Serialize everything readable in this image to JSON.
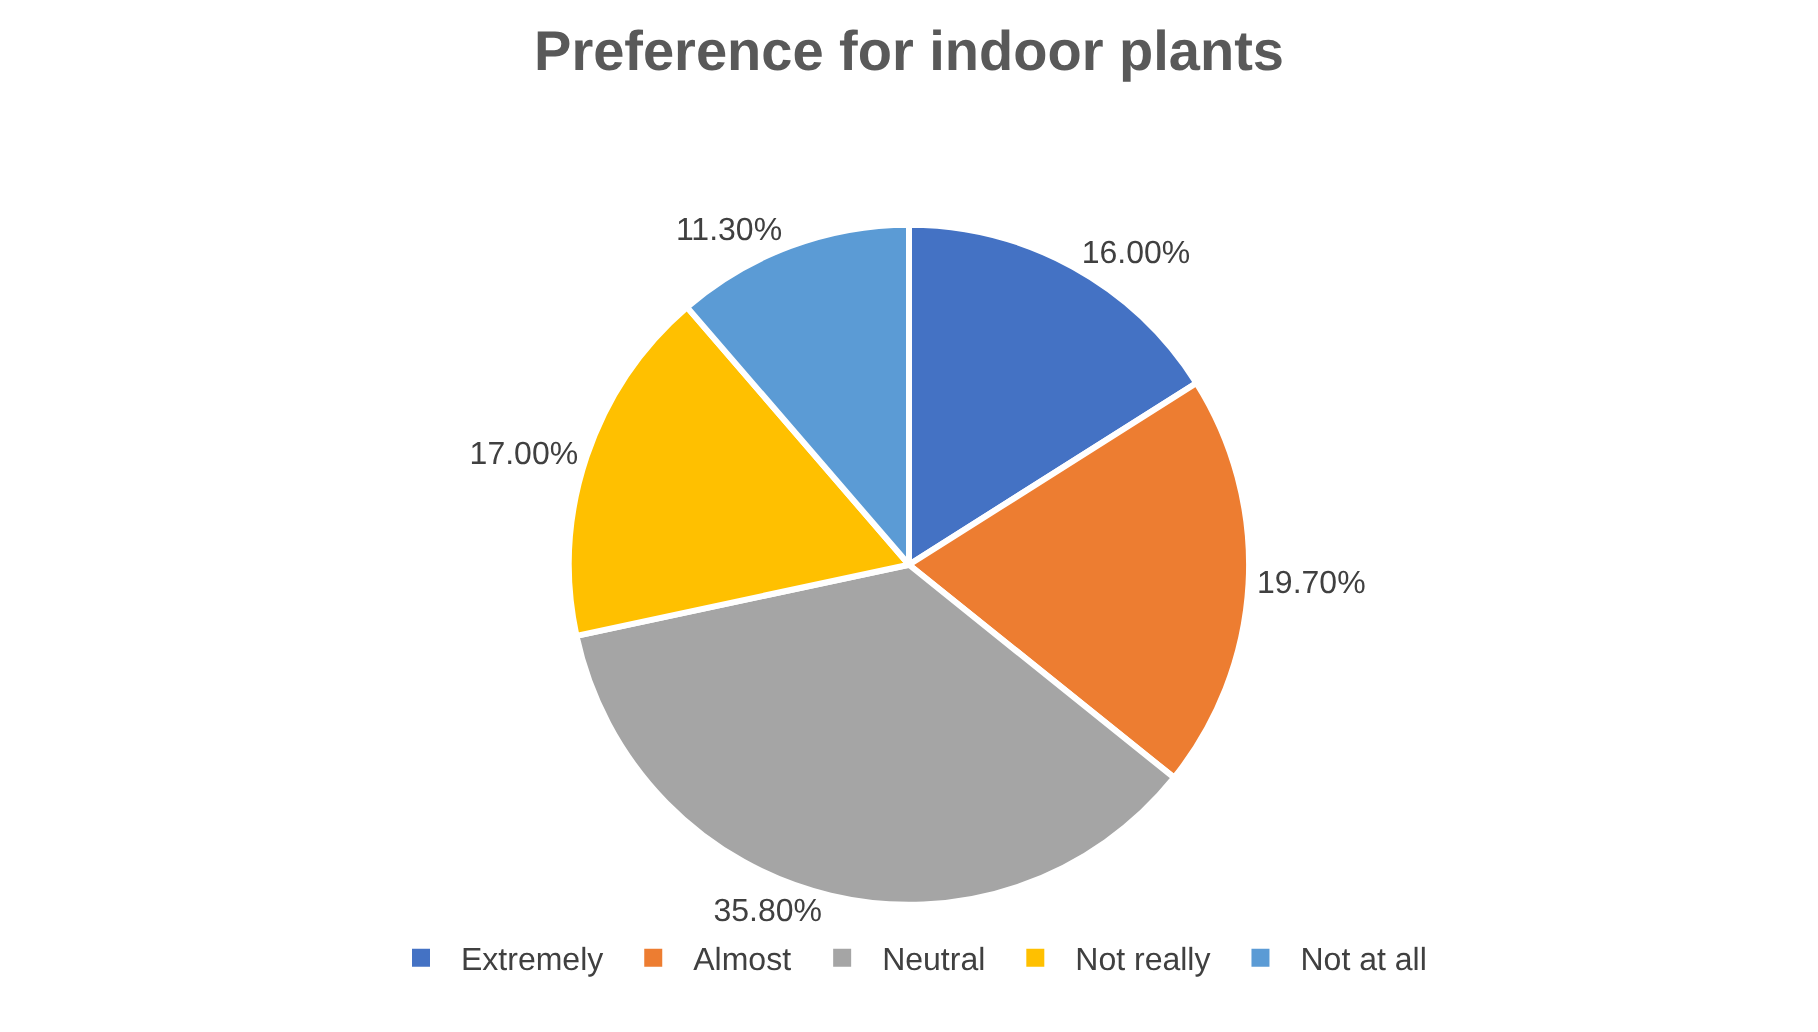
{
  "chart_data": {
    "type": "pie",
    "title": "Preference for indoor plants",
    "categories": [
      "Extremely",
      "Almost",
      "Neutral",
      "Not really",
      "Not at all"
    ],
    "values": [
      16.0,
      19.7,
      35.8,
      17.0,
      11.3
    ],
    "value_labels": [
      "16.00%",
      "19.70%",
      "35.80%",
      "17.00%",
      "11.30%"
    ],
    "colors": [
      "#4472c4",
      "#ed7d31",
      "#a5a5a5",
      "#ffc000",
      "#5b9bd5"
    ],
    "legend": "bottom"
  }
}
